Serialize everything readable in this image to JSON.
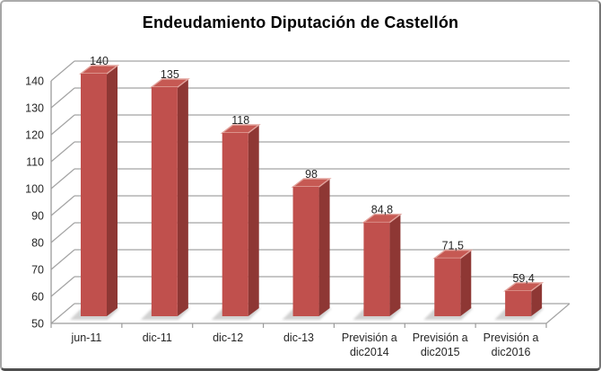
{
  "chart_data": {
    "type": "bar",
    "style": "3d-column",
    "title": "Endeudamiento Diputación de Castellón",
    "categories": [
      "jun-11",
      "dic-11",
      "dic-12",
      "dic-13",
      "Previsión a dic2014",
      "Previsión a dic2015",
      "Previsión a dic2016"
    ],
    "category_lines": [
      [
        "jun-11"
      ],
      [
        "dic-11"
      ],
      [
        "dic-12"
      ],
      [
        "dic-13"
      ],
      [
        "Previsión a",
        "dic2014"
      ],
      [
        "Previsión a",
        "dic2015"
      ],
      [
        "Previsión a",
        "dic2016"
      ]
    ],
    "values": [
      140,
      135,
      118,
      98,
      84.8,
      71.5,
      59.4
    ],
    "value_labels": [
      "140",
      "135",
      "118",
      "98",
      "84,8",
      "71,5",
      "59,4"
    ],
    "yticks": [
      50,
      60,
      70,
      80,
      90,
      100,
      110,
      120,
      130,
      140
    ],
    "ylim": [
      50,
      140
    ],
    "xlabel": "",
    "ylabel": "",
    "legend": "none",
    "grid": "horizontal",
    "colors": {
      "bar_front": "#C0504D",
      "bar_side": "#8E3734",
      "bar_top": "#C65953",
      "bar_highlight": "#E2A49D",
      "gridline": "#A3A3A3",
      "axis": "#9B9B9B",
      "text": "#262626",
      "title": "#000000",
      "shadow": "#C9C9C9",
      "background": "#FFFFFF"
    }
  }
}
